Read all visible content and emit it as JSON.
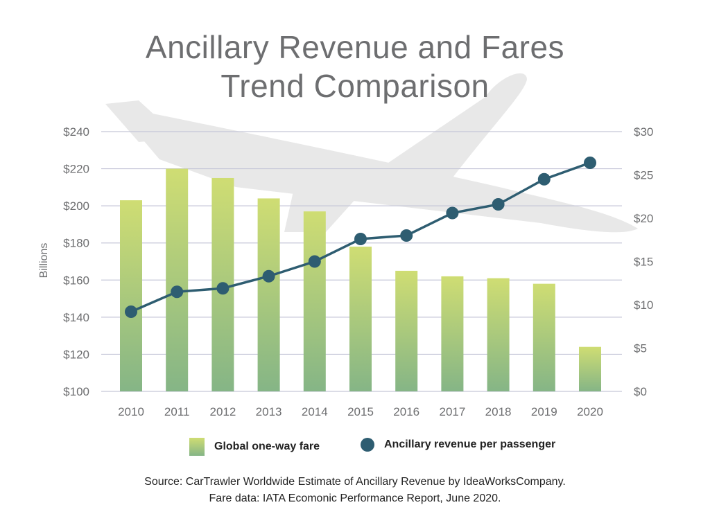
{
  "title_line1": "Ancillary Revenue and Fares",
  "title_line2": "Trend Comparison",
  "chart_data": {
    "type": "bar",
    "categories": [
      "2010",
      "2011",
      "2012",
      "2013",
      "2014",
      "2015",
      "2016",
      "2017",
      "2018",
      "2019",
      "2020"
    ],
    "series": [
      {
        "name": "Global one-way fare",
        "type": "bar",
        "axis": "left",
        "values": [
          203,
          220,
          215,
          204,
          197,
          178,
          165,
          162,
          161,
          158,
          124
        ]
      },
      {
        "name": "Ancillary revenue per passenger",
        "type": "line",
        "axis": "right",
        "values": [
          9.2,
          11.5,
          11.9,
          13.3,
          15.0,
          17.6,
          18.0,
          20.6,
          21.6,
          24.5,
          26.4
        ]
      }
    ],
    "ylabel": "Billions",
    "ylim_left": [
      100,
      240
    ],
    "ylim_right": [
      0,
      30
    ],
    "left_ticks": [
      100,
      120,
      140,
      160,
      180,
      200,
      220,
      240
    ],
    "left_tick_labels": [
      "$100",
      "$120",
      "$140",
      "$160",
      "$180",
      "$200",
      "$220",
      "$240"
    ],
    "right_ticks": [
      0,
      5,
      10,
      15,
      20,
      25,
      30
    ],
    "right_tick_labels": [
      "$0",
      "$5",
      "$10",
      "$15",
      "$20",
      "$25",
      "$30"
    ],
    "grid": true,
    "legend_position": "bottom"
  },
  "colors": {
    "bar_top": "#cfdd73",
    "bar_bottom": "#85b586",
    "line": "#2e5d71",
    "grid": "#c5c6d8",
    "plane": "#e8e8e8",
    "axis_text": "#6d6e70"
  },
  "legend": {
    "bar_label": "Global one-way fare",
    "line_label": "Ancillary revenue per passenger"
  },
  "source_line1": "Source: CarTrawler Worldwide Estimate of Ancillary Revenue by IdeaWorksCompany.",
  "source_line2": "Fare data: IATA Ecomonic Performance Report, June 2020.",
  "icons": {
    "background": "airplane-icon"
  }
}
